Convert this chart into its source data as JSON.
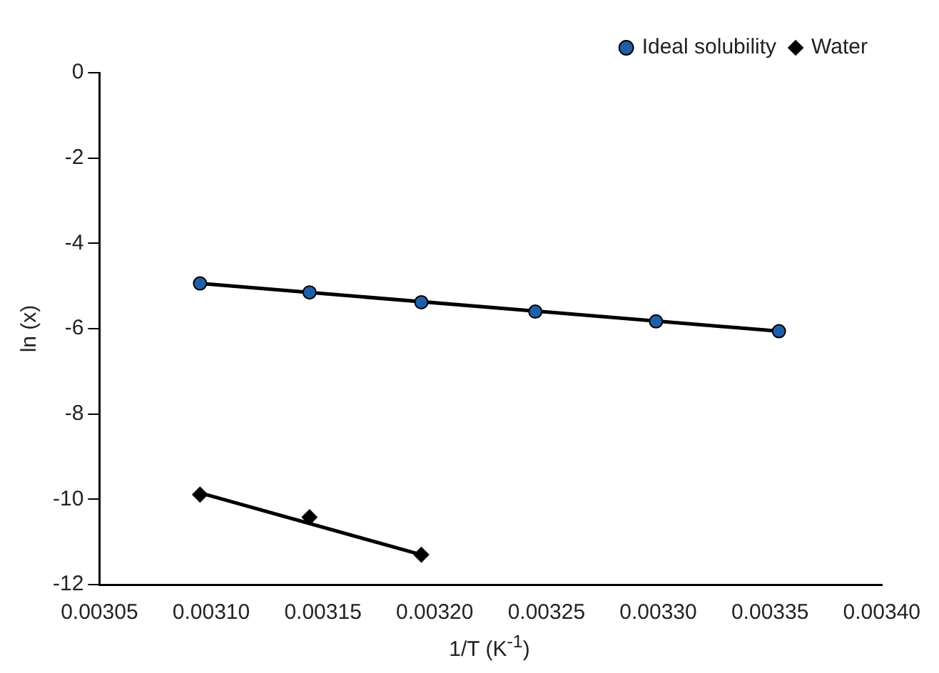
{
  "chart_data": {
    "type": "scatter",
    "xlabel": "1/T (K$^{-1}$)",
    "ylabel": "ln (x)",
    "xlim": [
      0.00305,
      0.0034
    ],
    "xticks": [
      0.00305,
      {
        "value": 0.0031,
        "label": "0.00310"
      },
      0.00315,
      {
        "value": 0.0032,
        "label": "0.00320"
      },
      0.00325,
      {
        "value": 0.0033,
        "label": "0.00330"
      },
      0.00335,
      {
        "value": 0.0034,
        "label": "0.00340"
      }
    ],
    "ylim": [
      -12,
      0
    ],
    "yticks": [
      -12,
      -10,
      -8,
      -6,
      -4,
      -2,
      0
    ],
    "grid": false,
    "legend": "top right",
    "series": [
      {
        "name": "Ideal solubility",
        "type": "scatter",
        "marker": "circle",
        "color": "#1f5fa8",
        "x": [
          0.003095,
          0.003144,
          0.003194,
          0.003245,
          0.003299,
          0.003354
        ],
        "values": [
          -4.94,
          -5.15,
          -5.38,
          -5.6,
          -5.83,
          -6.06
        ]
      },
      {
        "name": "Water",
        "type": "scatter",
        "marker": "diamond",
        "color": "#000000",
        "x": [
          0.003095,
          0.003144,
          0.003194
        ],
        "values": [
          -9.89,
          -10.42,
          -11.3
        ]
      },
      {
        "type": "line",
        "marker": "none",
        "color": "#000000",
        "x": [
          0.003095,
          0.003354
        ],
        "values": [
          -4.94,
          -6.06
        ]
      },
      {
        "type": "line",
        "marker": "none",
        "color": "#000000",
        "x": [
          0.003095,
          0.003194
        ],
        "values": [
          -9.85,
          -11.3
        ]
      }
    ]
  }
}
